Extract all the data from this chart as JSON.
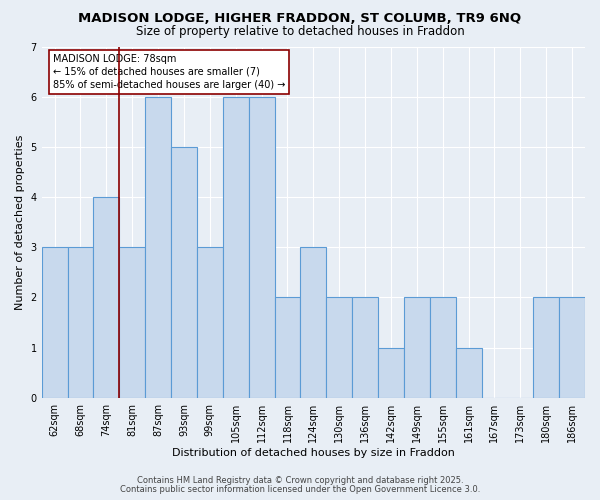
{
  "title1": "MADISON LODGE, HIGHER FRADDON, ST COLUMB, TR9 6NQ",
  "title2": "Size of property relative to detached houses in Fraddon",
  "xlabel": "Distribution of detached houses by size in Fraddon",
  "ylabel": "Number of detached properties",
  "categories": [
    "62sqm",
    "68sqm",
    "74sqm",
    "81sqm",
    "87sqm",
    "93sqm",
    "99sqm",
    "105sqm",
    "112sqm",
    "118sqm",
    "124sqm",
    "130sqm",
    "136sqm",
    "142sqm",
    "149sqm",
    "155sqm",
    "161sqm",
    "167sqm",
    "173sqm",
    "180sqm",
    "186sqm"
  ],
  "values": [
    3,
    3,
    4,
    3,
    6,
    5,
    3,
    6,
    6,
    2,
    3,
    2,
    2,
    1,
    2,
    2,
    1,
    0,
    0,
    2,
    2
  ],
  "bar_color": "#c8d9ed",
  "bar_edge_color": "#5b9bd5",
  "bar_edge_width": 0.8,
  "red_line_color": "#8b0000",
  "annotation_text": "MADISON LODGE: 78sqm\n← 15% of detached houses are smaller (7)\n85% of semi-detached houses are larger (40) →",
  "annotation_box_color": "white",
  "annotation_box_edge_color": "#8b0000",
  "ylim": [
    0,
    7
  ],
  "yticks": [
    0,
    1,
    2,
    3,
    4,
    5,
    6,
    7
  ],
  "footnote1": "Contains HM Land Registry data © Crown copyright and database right 2025.",
  "footnote2": "Contains public sector information licensed under the Open Government Licence 3.0.",
  "bg_color": "#e8eef5",
  "grid_color": "white",
  "title_fontsize": 9.5,
  "subtitle_fontsize": 8.5,
  "axis_label_fontsize": 8,
  "tick_fontsize": 7,
  "annotation_fontsize": 7,
  "footnote_fontsize": 6
}
